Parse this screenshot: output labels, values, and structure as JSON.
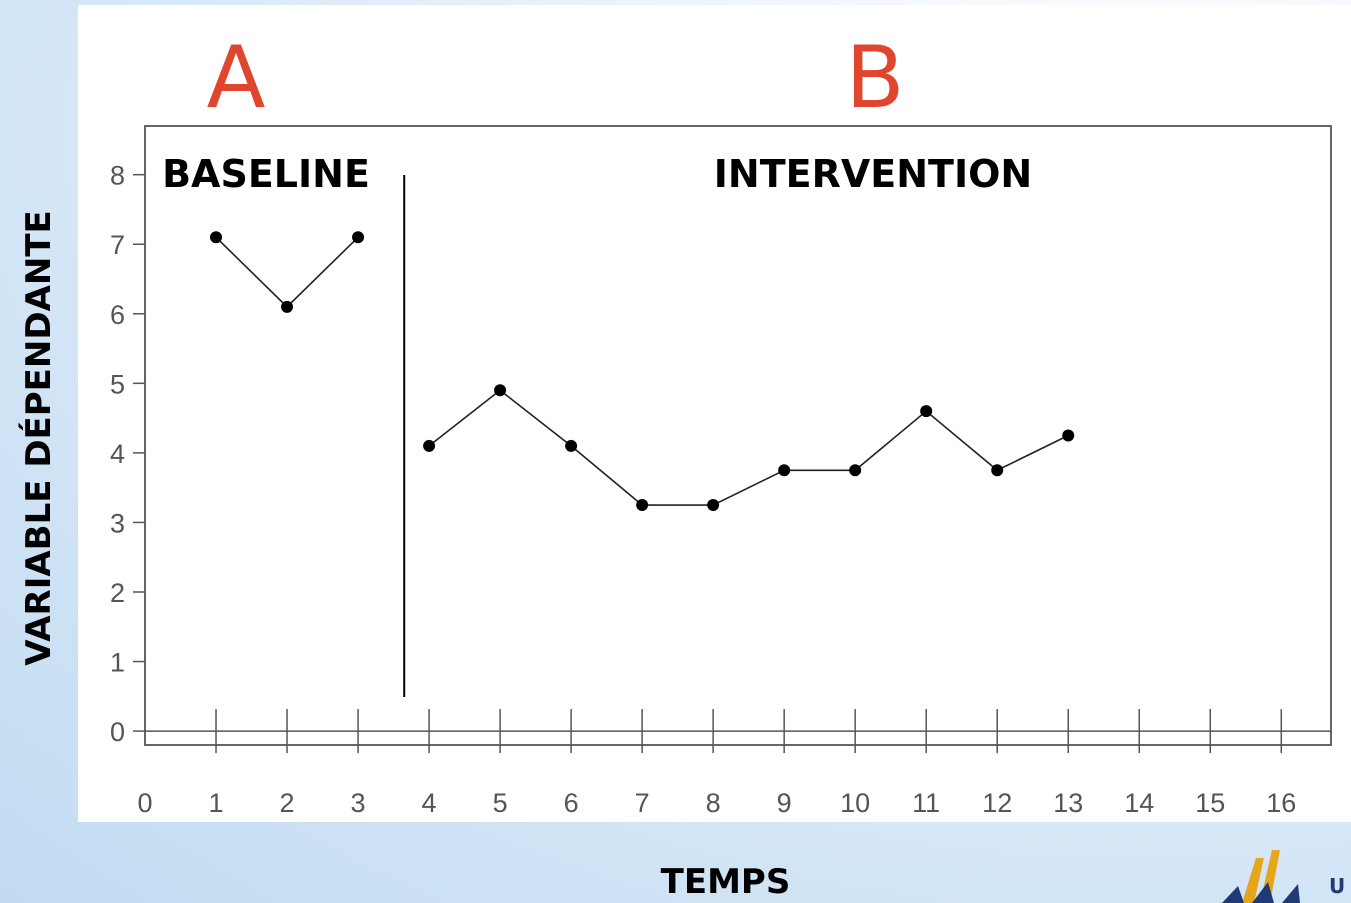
{
  "colors": {
    "phase_letters": "#e0452e",
    "series": "#000000",
    "axis": "#555555",
    "logo_gold": "#e6a61c",
    "logo_blue": "#1f3a75"
  },
  "logo": {
    "text": "U",
    "icon": "university-logo-icon"
  },
  "chart_data": {
    "type": "line",
    "xlabel": "TEMPS",
    "ylabel": "VARIABLE DÉPENDANTE",
    "xlim": [
      0,
      16.7
    ],
    "ylim": [
      -0.2,
      8.7
    ],
    "x_ticks": [
      0,
      1,
      2,
      3,
      4,
      5,
      6,
      7,
      8,
      9,
      10,
      11,
      12,
      13,
      14,
      15,
      16
    ],
    "y_ticks": [
      0,
      1,
      2,
      3,
      4,
      5,
      6,
      7,
      8
    ],
    "grid": false,
    "phases": [
      {
        "letter": "A",
        "name": "BASELINE"
      },
      {
        "letter": "B",
        "name": "INTERVENTION"
      }
    ],
    "phase_change_x": 3.65,
    "series": [
      {
        "x": [
          1,
          2,
          3
        ],
        "values": [
          7.1,
          6.1,
          7.1
        ]
      },
      {
        "x": [
          4,
          5,
          6,
          7,
          8,
          9,
          10,
          11,
          12,
          13
        ],
        "values": [
          4.1,
          4.9,
          4.1,
          3.25,
          3.25,
          3.75,
          3.75,
          4.6,
          3.75,
          4.25
        ]
      }
    ]
  }
}
